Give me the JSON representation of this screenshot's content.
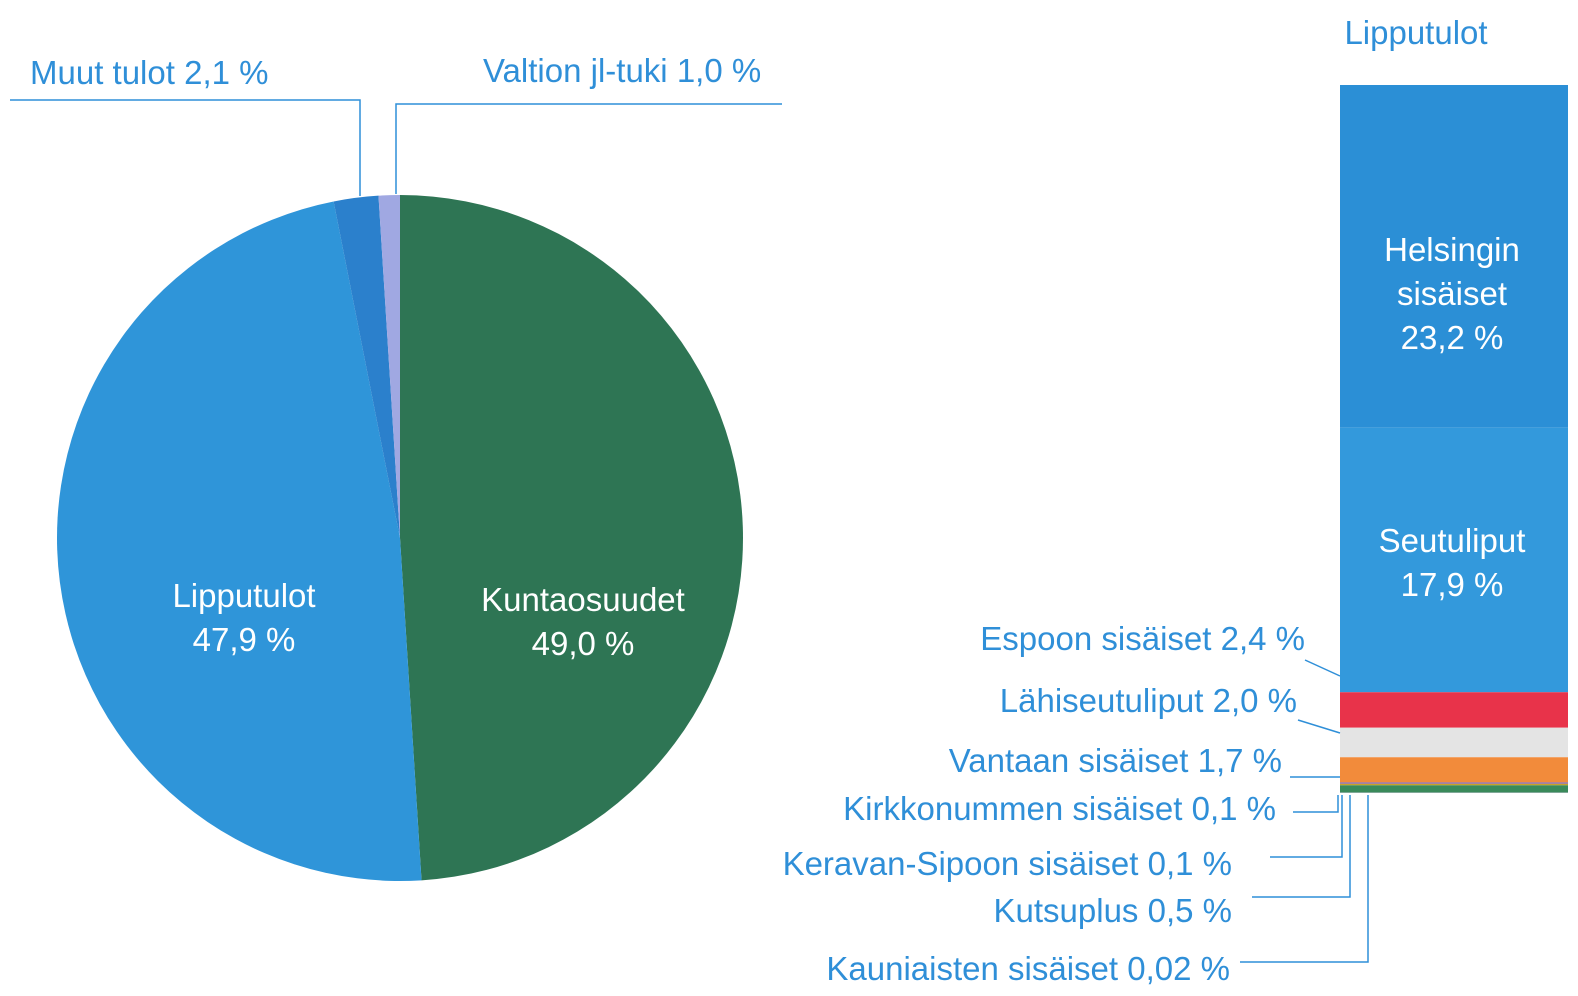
{
  "chart_data": [
    {
      "type": "pie",
      "categories": [
        "Kuntaosuudet",
        "Lipputulot",
        "Muut tulot",
        "Valtion jl-tuki"
      ],
      "values": [
        49.0,
        47.9,
        2.1,
        1.0
      ],
      "value_labels": [
        "49,0 %",
        "47,9 %",
        "2,1 %",
        "1,0 %"
      ],
      "colors": [
        "#2e7554",
        "#2f95d9",
        "#2b80cc",
        "#a0a8e2"
      ]
    },
    {
      "type": "stacked-bar",
      "title": "Lipputulot",
      "categories": [
        "Helsingin sisäiset",
        "Seutuliput",
        "Espoon sisäiset",
        "Lähiseutuliput",
        "Vantaan sisäiset",
        "Kirkkonummen sisäiset",
        "Keravan-Sipoon sisäiset",
        "Kutsuplus",
        "Kauniaisten sisäiset"
      ],
      "values": [
        23.2,
        17.9,
        2.4,
        2.0,
        1.7,
        0.1,
        0.1,
        0.5,
        0.02
      ],
      "value_labels": [
        "23,2 %",
        "17,9 %",
        "2,4 %",
        "2,0 %",
        "1,7 %",
        "0,1 %",
        "0,1 %",
        "0,5 %",
        "0,02 %"
      ],
      "colors": [
        "#2b8fd6",
        "#3399dc",
        "#e8334a",
        "#e4e4e4",
        "#f28b3b",
        "#8c6bb0",
        "#c9a227",
        "#3a8a5a",
        "#d8c0e8"
      ]
    }
  ]
}
